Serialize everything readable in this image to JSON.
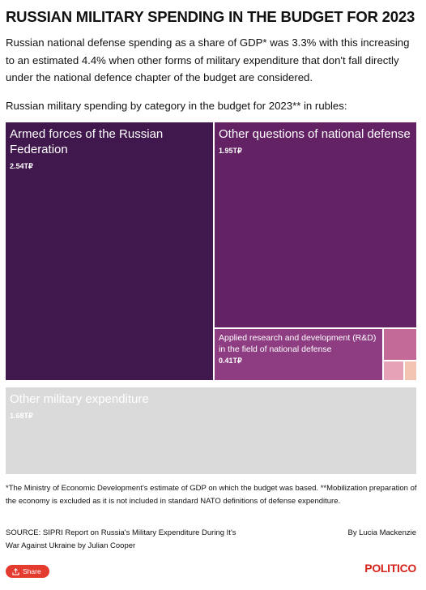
{
  "title": "RUSSIAN MILITARY SPENDING IN THE BUDGET FOR 2023",
  "description": "Russian national defense spending as a share of GDP* was 3.3% with this increasing to an estimated 4.4% when other forms of military expenditure that don't fall directly under the national defence chapter of the budget are considered.",
  "subheading": "Russian military spending by category in the budget for 2023** in rubles:",
  "chart_data": {
    "type": "treemap",
    "units": "trillion rubles",
    "items": [
      {
        "name": "Armed forces of the Russian Federation",
        "value": 2.54,
        "value_label": "2.54T₽",
        "color": "#40184d"
      },
      {
        "name": "Other questions of national defense",
        "value": 1.95,
        "value_label": "1.95T₽",
        "color": "#632264"
      },
      {
        "name": "Applied research and development (R&D) in the field of national defense",
        "value": 0.41,
        "value_label": "0.41T₽",
        "color": "#8e3d82"
      },
      {
        "name": "",
        "value": 0.09,
        "value_label": "",
        "color": "#c46a98"
      },
      {
        "name": "",
        "value": 0.035,
        "value_label": "",
        "color": "#e6a3b8"
      },
      {
        "name": "",
        "value": 0.02,
        "value_label": "",
        "color": "#f3c4b2"
      },
      {
        "name": "Other military expenditure",
        "value": 1.68,
        "value_label": "1.68T₽",
        "color": "#dadada"
      }
    ]
  },
  "footnote": "*The Ministry of Economic Development's estimate of GDP on which the budget was based. **Mobilization preparation of the economy is excluded as it is not included in standard NATO definitions of defense expenditure.",
  "source": "SOURCE: SIPRI Report on Russia's Military Expenditure During It's War Against Ukraine by Julian Cooper",
  "byline": "By Lucia Mackenzie",
  "share_label": "Share",
  "logo": "POLITICO"
}
